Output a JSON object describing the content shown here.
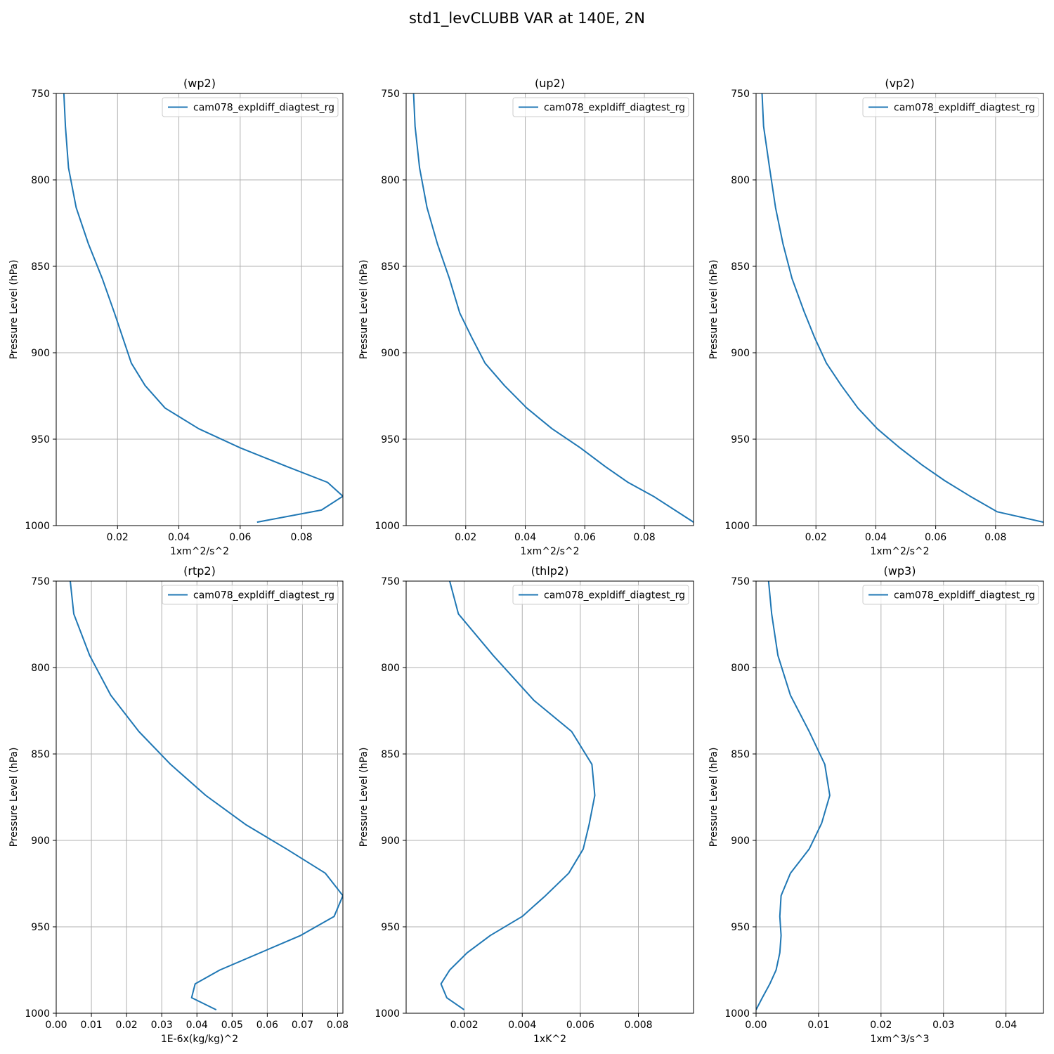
{
  "figure": {
    "title": "std1_levCLUBB VAR at 140E, 2N"
  },
  "colors": {
    "series": "#1f77b4",
    "grid": "#b0b0b0",
    "axes": "#000000"
  },
  "chart_data": [
    {
      "type": "line",
      "title": "(wp2)",
      "xlabel": "1xm^2/s^2",
      "ylabel": "Pressure Level (hPa)",
      "xlim": [
        0.0,
        0.0935
      ],
      "ylim": [
        1000,
        750
      ],
      "xticks": [
        0.02,
        0.04,
        0.06,
        0.08
      ],
      "xtick_labels": [
        "0.02",
        "0.04",
        "0.06",
        "0.08"
      ],
      "yticks": [
        750,
        800,
        850,
        900,
        950,
        1000
      ],
      "ytick_labels": [
        "750",
        "800",
        "850",
        "900",
        "950",
        "1000"
      ],
      "grid": true,
      "legend_position": "top-right",
      "series": [
        {
          "name": "cam078_expldiff_diagtest_rg",
          "x": [
            0.0025,
            0.003,
            0.004,
            0.0065,
            0.0105,
            0.015,
            0.019,
            0.0245,
            0.029,
            0.0355,
            0.0465,
            0.06,
            0.0755,
            0.0885,
            0.0935,
            0.0865,
            0.0655
          ],
          "y": [
            750,
            769,
            793,
            816,
            837,
            857,
            877,
            906,
            919,
            932,
            944,
            955,
            966,
            975,
            983,
            991,
            998
          ]
        }
      ]
    },
    {
      "type": "line",
      "title": "(up2)",
      "xlabel": "1xm^2/s^2",
      "ylabel": "Pressure Level (hPa)",
      "xlim": [
        0.0,
        0.0965
      ],
      "ylim": [
        1000,
        750
      ],
      "xticks": [
        0.02,
        0.04,
        0.06,
        0.08
      ],
      "xtick_labels": [
        "0.02",
        "0.04",
        "0.06",
        "0.08"
      ],
      "yticks": [
        750,
        800,
        850,
        900,
        950,
        1000
      ],
      "ytick_labels": [
        "750",
        "800",
        "850",
        "900",
        "950",
        "1000"
      ],
      "grid": true,
      "legend_position": "top-right",
      "series": [
        {
          "name": "cam078_expldiff_diagtest_rg",
          "x": [
            0.0025,
            0.003,
            0.0045,
            0.007,
            0.0105,
            0.0145,
            0.018,
            0.022,
            0.0265,
            0.033,
            0.0405,
            0.049,
            0.0585,
            0.067,
            0.0745,
            0.083,
            0.0965
          ],
          "y": [
            750,
            769,
            793,
            816,
            837,
            857,
            877,
            891,
            906,
            919,
            932,
            944,
            955,
            966,
            975,
            983,
            998
          ]
        }
      ]
    },
    {
      "type": "line",
      "title": "(vp2)",
      "xlabel": "1xm^2/s^2",
      "ylabel": "Pressure Level (hPa)",
      "xlim": [
        0.0,
        0.096
      ],
      "ylim": [
        1000,
        750
      ],
      "xticks": [
        0.02,
        0.04,
        0.06,
        0.08
      ],
      "xtick_labels": [
        "0.02",
        "0.04",
        "0.06",
        "0.08"
      ],
      "yticks": [
        750,
        800,
        850,
        900,
        950,
        1000
      ],
      "ytick_labels": [
        "750",
        "800",
        "850",
        "900",
        "950",
        "1000"
      ],
      "grid": true,
      "legend_position": "top-right",
      "series": [
        {
          "name": "cam078_expldiff_diagtest_rg",
          "x": [
            0.002,
            0.0025,
            0.0045,
            0.0065,
            0.009,
            0.012,
            0.016,
            0.0195,
            0.0235,
            0.0285,
            0.034,
            0.0405,
            0.048,
            0.0555,
            0.063,
            0.0715,
            0.0805,
            0.096
          ],
          "y": [
            750,
            769,
            793,
            816,
            837,
            857,
            876,
            891,
            906,
            919,
            932,
            944,
            955,
            965,
            974,
            983,
            992,
            998
          ]
        }
      ]
    },
    {
      "type": "line",
      "title": "(rtp2)",
      "xlabel": "1E-6x(kg/kg)^2",
      "ylabel": "Pressure Level (hPa)",
      "xlim": [
        0.0,
        0.0815
      ],
      "ylim": [
        1000,
        750
      ],
      "xticks": [
        0.0,
        0.01,
        0.02,
        0.03,
        0.04,
        0.05,
        0.06,
        0.07,
        0.08
      ],
      "xtick_labels": [
        "0.00",
        "0.01",
        "0.02",
        "0.03",
        "0.04",
        "0.05",
        "0.06",
        "0.07",
        "0.08"
      ],
      "yticks": [
        750,
        800,
        850,
        900,
        950,
        1000
      ],
      "ytick_labels": [
        "750",
        "800",
        "850",
        "900",
        "950",
        "1000"
      ],
      "grid": true,
      "legend_position": "top-right",
      "series": [
        {
          "name": "cam078_expldiff_diagtest_rg",
          "x": [
            0.004,
            0.005,
            0.0095,
            0.0155,
            0.0235,
            0.0325,
            0.0425,
            0.054,
            0.0655,
            0.0765,
            0.0815,
            0.079,
            0.0695,
            0.0465,
            0.0395,
            0.0385,
            0.0455
          ],
          "y": [
            750,
            769,
            793,
            816,
            837,
            856,
            874,
            891,
            905,
            919,
            932,
            944,
            955,
            975,
            983,
            991,
            998
          ]
        }
      ]
    },
    {
      "type": "line",
      "title": "(thlp2)",
      "xlabel": "1xK^2",
      "ylabel": "Pressure Level (hPa)",
      "xlim": [
        0.0,
        0.0099
      ],
      "ylim": [
        1000,
        750
      ],
      "xticks": [
        0.002,
        0.004,
        0.006,
        0.008
      ],
      "xtick_labels": [
        "0.002",
        "0.004",
        "0.006",
        "0.008"
      ],
      "yticks": [
        750,
        800,
        850,
        900,
        950,
        1000
      ],
      "ytick_labels": [
        "750",
        "800",
        "850",
        "900",
        "950",
        "1000"
      ],
      "grid": true,
      "legend_position": "top-right",
      "series": [
        {
          "name": "cam078_expldiff_diagtest_rg",
          "x": [
            0.0015,
            0.0018,
            0.003,
            0.0044,
            0.0057,
            0.0064,
            0.0065,
            0.0063,
            0.0061,
            0.0056,
            0.0048,
            0.004,
            0.0029,
            0.0021,
            0.0015,
            0.0012,
            0.0014,
            0.002
          ],
          "y": [
            750,
            769,
            793,
            819,
            837,
            856,
            874,
            891,
            905,
            919,
            932,
            944,
            955,
            965,
            975,
            983,
            991,
            998
          ]
        }
      ]
    },
    {
      "type": "line",
      "title": "(wp3)",
      "xlabel": "1xm^3/s^3",
      "ylabel": "Pressure Level (hPa)",
      "xlim": [
        0.0,
        0.046
      ],
      "ylim": [
        1000,
        750
      ],
      "xticks": [
        0.0,
        0.01,
        0.02,
        0.03,
        0.04
      ],
      "xtick_labels": [
        "0.00",
        "0.01",
        "0.02",
        "0.03",
        "0.04"
      ],
      "yticks": [
        750,
        800,
        850,
        900,
        950,
        1000
      ],
      "ytick_labels": [
        "750",
        "800",
        "850",
        "900",
        "950",
        "1000"
      ],
      "grid": true,
      "legend_position": "top-right",
      "series": [
        {
          "name": "cam078_expldiff_diagtest_rg",
          "x": [
            0.002,
            0.0025,
            0.0035,
            0.0055,
            0.0085,
            0.011,
            0.0118,
            0.0105,
            0.0085,
            0.0055,
            0.004,
            0.0038,
            0.004,
            0.0038,
            0.0032,
            0.0022,
            0.001,
            0.0
          ],
          "y": [
            750,
            769,
            793,
            816,
            837,
            856,
            874,
            890,
            905,
            919,
            932,
            944,
            955,
            965,
            975,
            983,
            991,
            998
          ]
        }
      ]
    }
  ]
}
